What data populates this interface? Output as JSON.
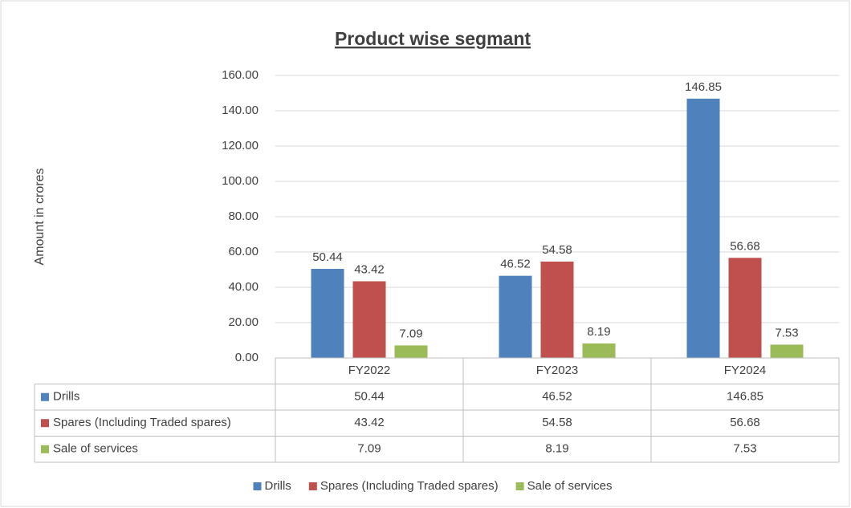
{
  "chart_data": {
    "type": "bar",
    "title": "Product wise segmant",
    "y_label": "Amount in crores",
    "categories": [
      "FY2022",
      "FY2023",
      "FY2024"
    ],
    "series": [
      {
        "name": "Drills",
        "color": "#4f81bd",
        "values": [
          50.44,
          46.52,
          146.85
        ]
      },
      {
        "name": "Spares (Including Traded spares)",
        "color": "#c0504d",
        "values": [
          43.42,
          54.58,
          56.68
        ]
      },
      {
        "name": "Sale of services",
        "color": "#9bbb59",
        "values": [
          7.09,
          8.19,
          7.53
        ]
      }
    ],
    "ylim": [
      0,
      160
    ],
    "yticks": [
      {
        "value": 0,
        "label": "0.00"
      },
      {
        "value": 20,
        "label": "20.00"
      },
      {
        "value": 40,
        "label": "40.00"
      },
      {
        "value": 60,
        "label": "60.00"
      },
      {
        "value": 80,
        "label": "80.00"
      },
      {
        "value": 100,
        "label": "100.00"
      },
      {
        "value": 120,
        "label": "120.00"
      },
      {
        "value": 140,
        "label": "140.00"
      },
      {
        "value": 160,
        "label": "160.00"
      }
    ],
    "grid": true,
    "legend": "bottom",
    "data_table": true
  }
}
